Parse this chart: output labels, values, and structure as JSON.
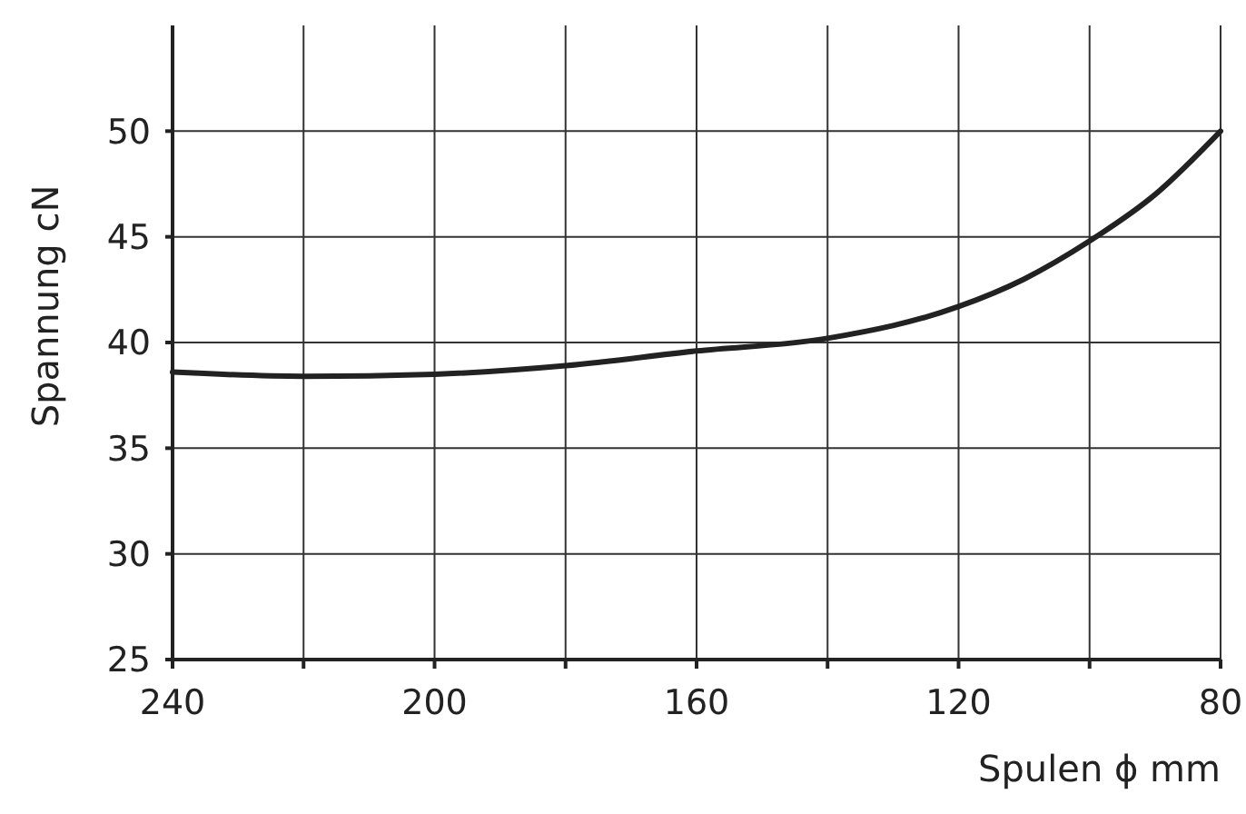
{
  "chart_data": {
    "type": "line",
    "xlabel": "Spulen ϕ mm",
    "ylabel": "Spannung  cN",
    "x": [
      240,
      220,
      200,
      180,
      160,
      140,
      120,
      110,
      100,
      90,
      80
    ],
    "series": [
      {
        "color": "#222222",
        "values": [
          38.6,
          38.4,
          38.5,
          38.9,
          39.6,
          40.2,
          41.7,
          43.0,
          44.8,
          47.0,
          50.0
        ]
      }
    ],
    "xlim": [
      240,
      80
    ],
    "ylim": [
      25,
      55
    ],
    "xticks": [
      240,
      {
        "value": 220,
        "label": null
      },
      200,
      {
        "value": 180,
        "label": null
      },
      160,
      {
        "value": 140,
        "label": null
      },
      120,
      {
        "value": 100,
        "label": null
      },
      80
    ],
    "yticks": [
      25,
      30,
      35,
      40,
      45,
      50
    ],
    "grid": true,
    "marker": "none",
    "line_style": "solid"
  }
}
